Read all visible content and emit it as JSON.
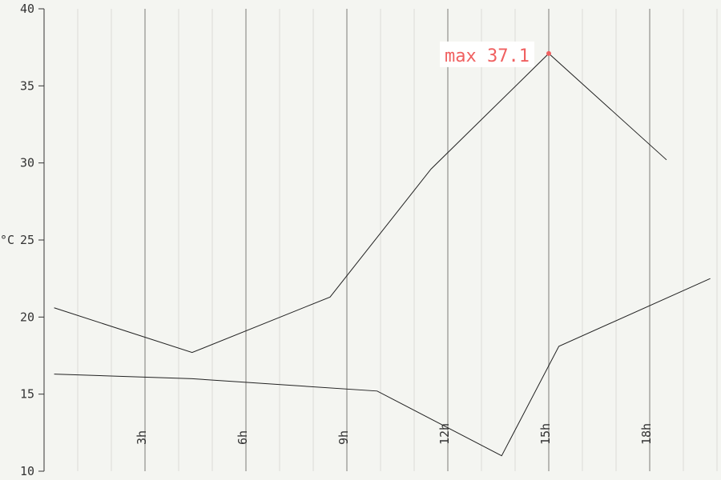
{
  "chart_data": {
    "type": "line",
    "ylabel": "°C",
    "ylim": [
      10,
      40
    ],
    "xlim": [
      0,
      20
    ],
    "yticks": [
      "10",
      "15",
      "20",
      "25",
      "30",
      "35",
      "40"
    ],
    "xticks": [
      "3h",
      "6h",
      "9h",
      "12h",
      "15h",
      "18h"
    ],
    "grid": true,
    "series": [
      {
        "x": [
          0.3,
          4.4,
          8.5,
          11.5,
          15.0,
          18.5
        ],
        "values": [
          20.6,
          17.7,
          21.3,
          29.6,
          37.1,
          30.2
        ]
      },
      {
        "x": [
          0.3,
          4.4,
          9.9,
          13.6,
          15.3,
          19.8
        ],
        "values": [
          16.3,
          16.0,
          15.2,
          11.0,
          18.1,
          22.5
        ]
      }
    ],
    "annotation": {
      "label": "max 37.1",
      "x": 15.0,
      "y": 37.1
    }
  },
  "colors": {
    "line": "#222222",
    "accent": "#f06060",
    "grid_minor": "#dcdcd8",
    "grid_major": "#b8b8b4",
    "axis": "#333333",
    "annotation_bg": "#ffffff"
  }
}
